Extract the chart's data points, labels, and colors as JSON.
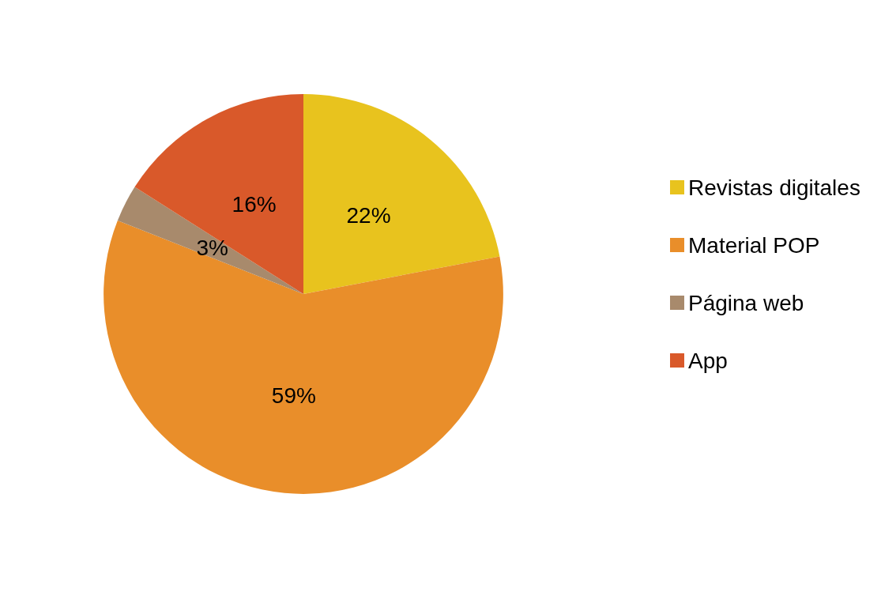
{
  "chart_data": {
    "type": "pie",
    "categories": [
      "Revistas digitales",
      "Material POP",
      "Página web",
      "App"
    ],
    "values": [
      22,
      59,
      3,
      16
    ],
    "colors": [
      "#e8c31e",
      "#e98e2a",
      "#a88a6c",
      "#d9592a"
    ],
    "value_labels": [
      "22%",
      "59%",
      "3%",
      "16%"
    ],
    "legend": "right"
  }
}
